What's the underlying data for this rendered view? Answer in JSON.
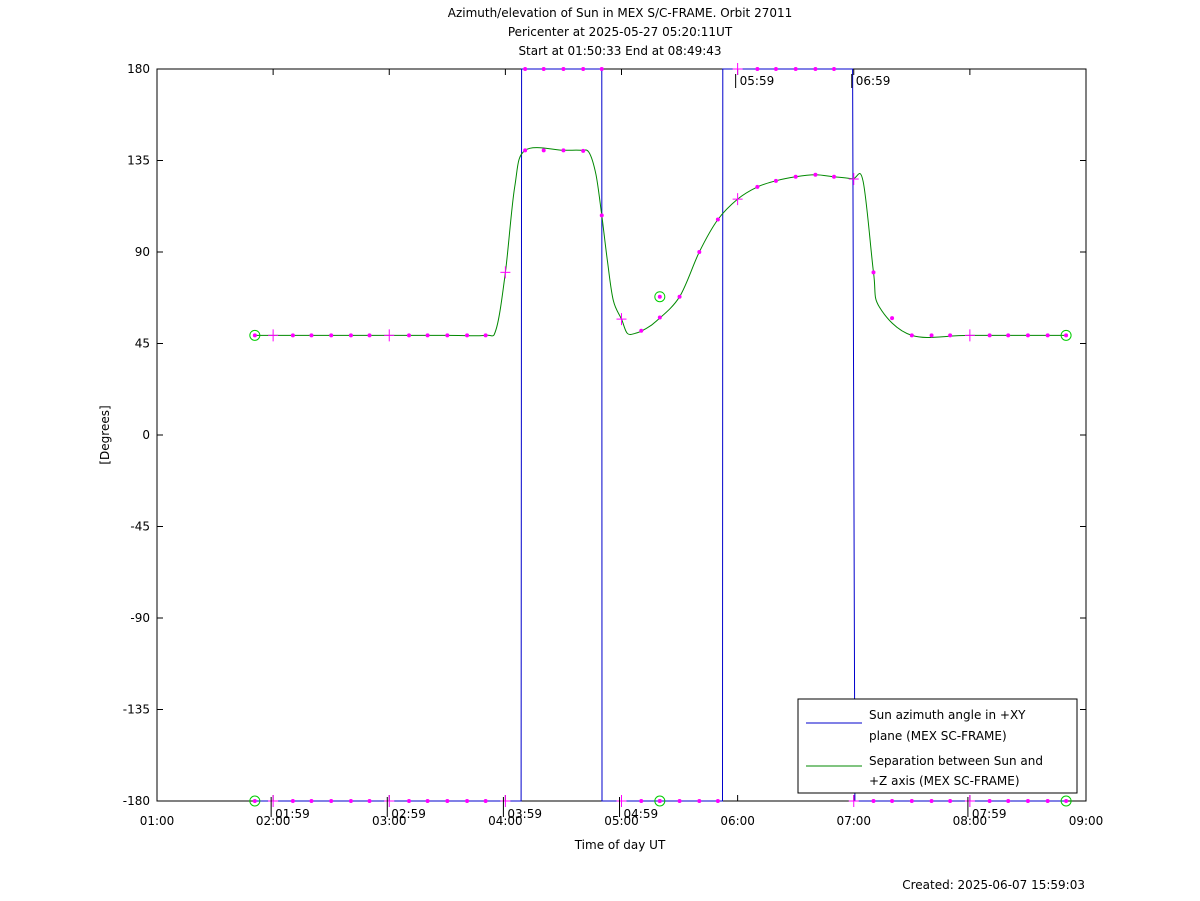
{
  "chart_data": {
    "type": "line",
    "title_lines": [
      "Azimuth/elevation of Sun in MEX S/C-FRAME.  Orbit 27011",
      "Pericenter at 2025-05-27 05:20:11UT",
      "Start at 01:50:33 End at 08:49:43"
    ],
    "xlabel": "Time of day UT",
    "ylabel": "[Degrees]",
    "xlim_hours": [
      1.0,
      9.0
    ],
    "ylim": [
      -180,
      180
    ],
    "x_tick_values": [
      1,
      2,
      3,
      4,
      5,
      6,
      7,
      8,
      9
    ],
    "x_tick_labels": [
      "01:00",
      "02:00",
      "03:00",
      "04:00",
      "05:00",
      "06:00",
      "07:00",
      "08:00",
      "09:00"
    ],
    "y_tick_values": [
      180,
      135,
      90,
      45,
      0,
      -45,
      -90,
      -135,
      -180
    ],
    "y_tick_labels": [
      "180",
      "135",
      "90",
      "45",
      "0",
      "-45",
      "-90",
      "-135",
      "-180"
    ],
    "grid": false,
    "legend_position": "bottom-right",
    "colors": {
      "azimuth": "#0000cc",
      "separation": "#008800",
      "markers": "#ff00ff",
      "endpoints": "#00cc00"
    },
    "series": [
      {
        "name": "Sun azimuth angle in +XY plane (MEX SC-FRAME)",
        "legend_lines": [
          "Sun azimuth angle in +XY",
          "plane (MEX SC-FRAME)"
        ],
        "x": [
          1.8425,
          4.135,
          4.14,
          4.1402,
          4.83,
          4.832,
          5.87,
          5.872,
          6.99,
          7.01,
          8.8286
        ],
        "y": [
          -180,
          -180,
          180,
          180,
          180,
          -180,
          -180,
          180,
          180,
          -180,
          -180
        ]
      },
      {
        "name": "Separation between Sun and +Z axis (MEX SC-FRAME)",
        "legend_lines": [
          "Separation between Sun and",
          "+Z axis (MEX SC-FRAME)"
        ],
        "x": [
          1.8425,
          2.5,
          3.5,
          3.83,
          3.92,
          4.0,
          4.08,
          4.17,
          4.5,
          4.65,
          4.72,
          4.78,
          4.83,
          4.88,
          4.93,
          5.0,
          5.05,
          5.12,
          5.2,
          5.3,
          5.5,
          5.67,
          5.83,
          6.0,
          6.17,
          6.33,
          6.5,
          6.67,
          6.83,
          6.99,
          7.08,
          7.17,
          7.22,
          7.5,
          8.0,
          8.8286
        ],
        "y": [
          49,
          49,
          49,
          49,
          52,
          80,
          122,
          140,
          140,
          140,
          139,
          128,
          108,
          85,
          66,
          57,
          50,
          50,
          52,
          56,
          68,
          90,
          106,
          116,
          122,
          125,
          127,
          128,
          127,
          126,
          125,
          80,
          63,
          49,
          49,
          49
        ]
      }
    ],
    "marker_times": [
      2.0,
      2.17,
      2.33,
      2.5,
      2.67,
      2.83,
      3.0,
      3.17,
      3.33,
      3.5,
      3.67,
      3.83,
      4.0,
      4.17,
      4.33,
      4.5,
      4.67,
      4.83,
      5.0,
      5.17,
      5.33,
      5.5,
      5.67,
      5.83,
      6.0,
      6.17,
      6.33,
      6.5,
      6.67,
      6.83,
      7.0,
      7.17,
      7.33,
      7.5,
      7.67,
      7.83,
      8.0,
      8.17,
      8.33,
      8.5,
      8.67
    ],
    "hour_markers": [
      2.0,
      3.0,
      4.0,
      5.0,
      6.0,
      7.0,
      8.0
    ],
    "endpoint_markers": [
      {
        "x": 1.8425,
        "y": 49
      },
      {
        "x": 5.33,
        "y": 68
      },
      {
        "x": 8.8286,
        "y": 49
      },
      {
        "x": 1.8425,
        "y": -180
      },
      {
        "x": 5.33,
        "y": -180
      },
      {
        "x": 8.8286,
        "y": -180
      }
    ],
    "annotations": [
      {
        "text": "01:59",
        "x": 1.983,
        "y": -180
      },
      {
        "text": "02:59",
        "x": 2.983,
        "y": -180
      },
      {
        "text": "03:59",
        "x": 3.983,
        "y": -180
      },
      {
        "text": "04:59",
        "x": 4.983,
        "y": -180
      },
      {
        "text": "05:59",
        "x": 5.983,
        "y": 180
      },
      {
        "text": "06:59",
        "x": 6.983,
        "y": 180
      },
      {
        "text": "07:59",
        "x": 7.983,
        "y": -180
      }
    ]
  },
  "footer": {
    "created": "Created: 2025-06-07 15:59:03"
  }
}
